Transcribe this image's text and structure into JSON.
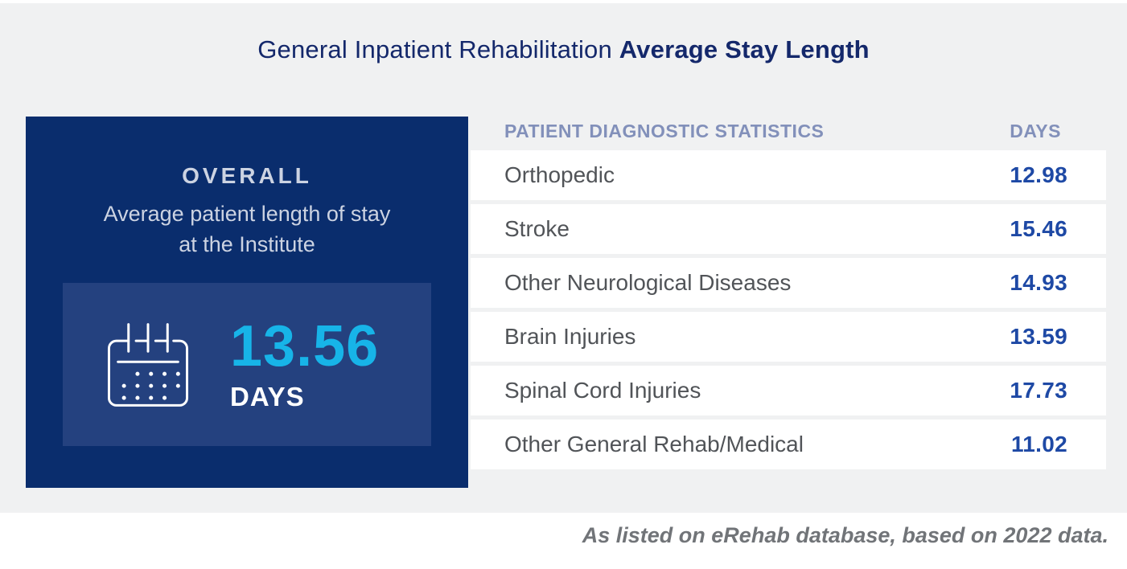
{
  "title": {
    "regular": "General Inpatient Rehabilitation ",
    "bold": "Average Stay Length"
  },
  "overall_card": {
    "heading": "OVERALL",
    "description_line1": "Average patient length of stay",
    "description_line2": "at the Institute",
    "value": "13.56",
    "unit": "DAYS",
    "icon": "calendar-icon"
  },
  "table": {
    "headers": {
      "diagnostic": "PATIENT DIAGNOSTIC STATISTICS",
      "days": "DAYS"
    },
    "rows": [
      {
        "label": "Orthopedic",
        "days": "12.98"
      },
      {
        "label": "Stroke",
        "days": "15.46"
      },
      {
        "label": "Other Neurological Diseases",
        "days": "14.93"
      },
      {
        "label": "Brain Injuries",
        "days": "13.59"
      },
      {
        "label": "Spinal Cord Injuries",
        "days": "17.73"
      },
      {
        "label": "Other General Rehab/Medical",
        "days": "11.02"
      }
    ]
  },
  "footnote": "As listed on eRehab database, based on 2022 data.",
  "colors": {
    "bg-gray": "#f0f1f2",
    "title-navy": "#14286b",
    "card-navy": "#0a2d6d",
    "panel-blue": "#24417f",
    "accent-cyan": "#17b4e8",
    "card-text": "#ccd3e2",
    "header-blue": "#8290ba",
    "label-gray": "#515458",
    "value-blue": "#1e49a5",
    "footer-gray": "#717478",
    "row-white": "#ffffff"
  },
  "chart_data": {
    "type": "table",
    "title": "General Inpatient Rehabilitation Average Stay Length",
    "columns": [
      "PATIENT DIAGNOSTIC STATISTICS",
      "DAYS"
    ],
    "categories": [
      "Orthopedic",
      "Stroke",
      "Other Neurological Diseases",
      "Brain Injuries",
      "Spinal Cord Injuries",
      "Other General Rehab/Medical"
    ],
    "values": [
      12.98,
      15.46,
      14.93,
      13.59,
      17.73,
      11.02
    ],
    "overall_average_days": 13.56,
    "overall_label": "OVERALL Average patient length of stay at the Institute",
    "source_note": "As listed on eRehab database, based on 2022 data.",
    "legend_position": "none",
    "grid": false
  }
}
